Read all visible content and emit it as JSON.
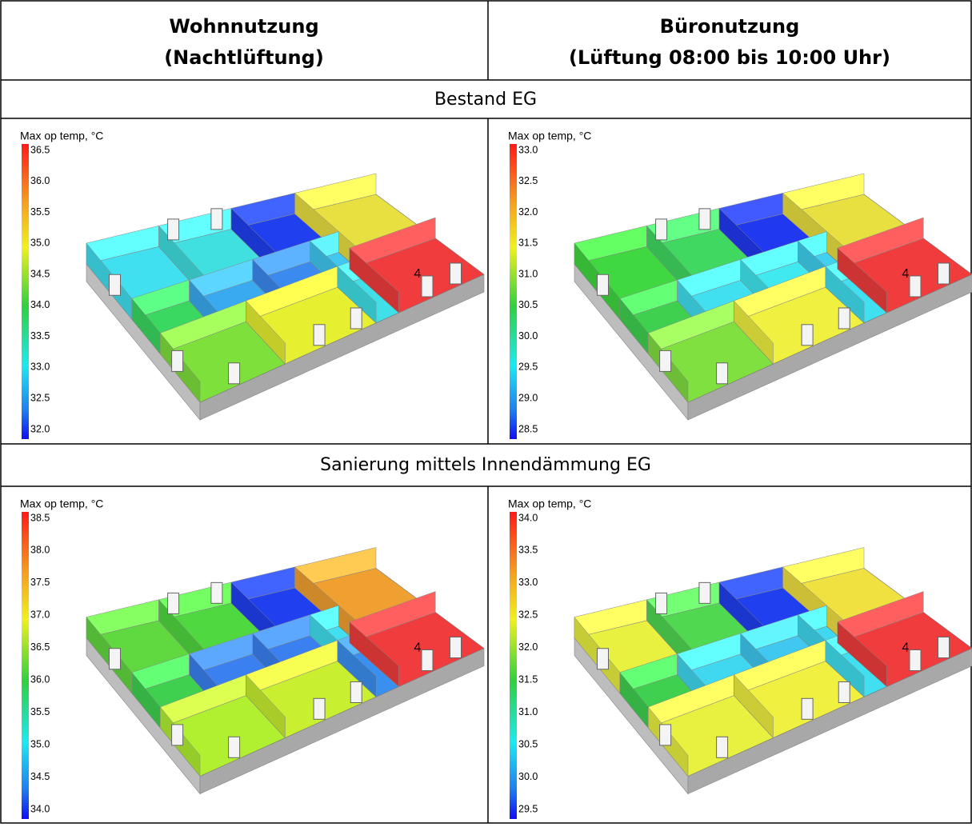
{
  "header": {
    "col1": [
      "Wohnnutzung",
      "(Nachtlüftung)"
    ],
    "col2": [
      "Büronutzung",
      "(Lüftung 08:00 bis 10:00 Uhr)"
    ]
  },
  "sections": [
    {
      "title": "Bestand EG",
      "panels": [
        {
          "legend_title": "Max op temp, °C",
          "ticks": [
            "36.5",
            "36.0",
            "35.5",
            "35.0",
            "34.5",
            "34.0",
            "33.5",
            "33.0",
            "32.5",
            "32.0"
          ],
          "room_label": "4"
        },
        {
          "legend_title": "Max op temp, °C",
          "ticks": [
            "33.0",
            "32.5",
            "32.0",
            "31.5",
            "31.0",
            "30.5",
            "30.0",
            "29.5",
            "29.0",
            "28.5"
          ],
          "room_label": "4"
        }
      ]
    },
    {
      "title": "Sanierung mittels Innendämmung EG",
      "panels": [
        {
          "legend_title": "Max op temp, °C",
          "ticks": [
            "38.5",
            "38.0",
            "37.5",
            "37.0",
            "36.5",
            "36.0",
            "35.5",
            "35.0",
            "34.5",
            "34.0"
          ],
          "room_label": "4"
        },
        {
          "legend_title": "Max op temp, °C",
          "ticks": [
            "34.0",
            "33.5",
            "33.0",
            "32.5",
            "32.0",
            "31.5",
            "31.0",
            "30.5",
            "30.0",
            "29.5"
          ],
          "room_label": "4"
        }
      ]
    }
  ]
}
